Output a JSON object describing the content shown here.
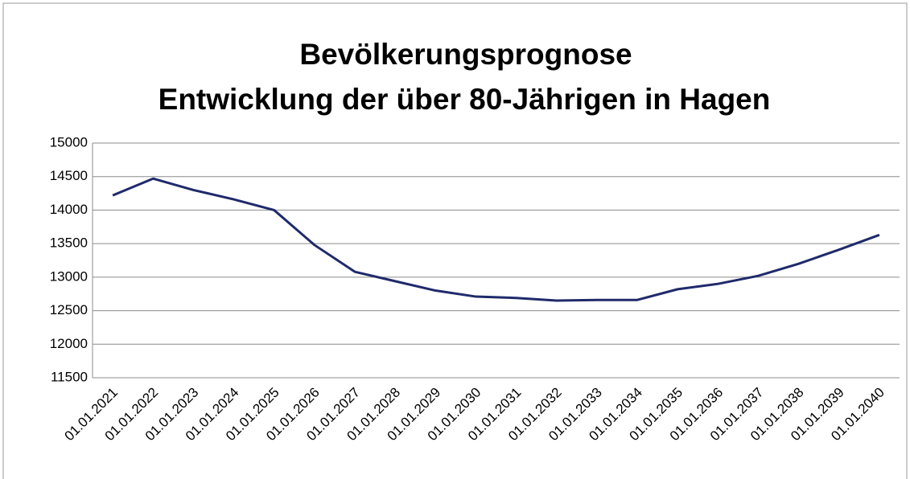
{
  "chart_data": {
    "type": "line",
    "title": "Bevölkerungsprognose",
    "subtitle": "Entwicklung der über 80-Jährigen in Hagen",
    "categories": [
      "01.01.2021",
      "01.01.2022",
      "01.01.2023",
      "01.01.2024",
      "01.01.2025",
      "01.01.2026",
      "01.01.2027",
      "01.01.2028",
      "01.01.2029",
      "01.01.2030",
      "01.01.2031",
      "01.01.2032",
      "01.01.2033",
      "01.01.2034",
      "01.01.2035",
      "01.01.2036",
      "01.01.2037",
      "01.01.2038",
      "01.01.2039",
      "01.01.2040"
    ],
    "values": [
      14220,
      14470,
      14300,
      14160,
      14000,
      13480,
      13080,
      12940,
      12800,
      12710,
      12690,
      12650,
      12660,
      12660,
      12820,
      12900,
      13020,
      13200,
      13410,
      13630
    ],
    "color": "#1f2a6b",
    "ylim": [
      11500,
      15000
    ],
    "yticks": [
      11500,
      12000,
      12500,
      13000,
      13500,
      14000,
      14500,
      15000
    ],
    "grid": true
  }
}
